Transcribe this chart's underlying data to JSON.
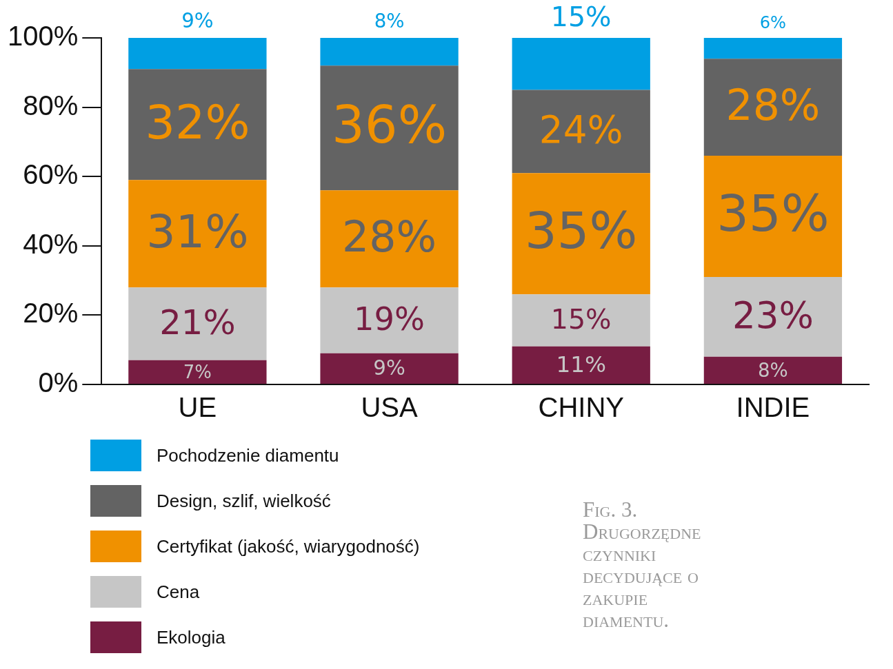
{
  "chart_data": {
    "type": "bar",
    "stacked": true,
    "categories": [
      "UE",
      "USA",
      "CHINY",
      "INDIE"
    ],
    "series": [
      {
        "name": "Ekologia",
        "color": "#771d42",
        "values": [
          7,
          9,
          11,
          8
        ],
        "value_labels": [
          "7%",
          "9%",
          "11%",
          "8%"
        ]
      },
      {
        "name": "Cena",
        "color": "#c6c6c6",
        "values": [
          21,
          19,
          15,
          23
        ],
        "value_labels": [
          "21%",
          "19%",
          "15%",
          "23%"
        ]
      },
      {
        "name": "Certyfikat (jakość, wiarygodność)",
        "color": "#f09100",
        "values": [
          31,
          28,
          35,
          35
        ],
        "value_labels": [
          "31%",
          "28%",
          "35%",
          "35%"
        ]
      },
      {
        "name": "Design, szlif, wielkość",
        "color": "#636363",
        "values": [
          32,
          36,
          24,
          28
        ],
        "value_labels": [
          "32%",
          "36%",
          "24%",
          "28%"
        ]
      },
      {
        "name": "Pochodzenie diamentu",
        "color": "#009fe3",
        "values": [
          9,
          8,
          15,
          6
        ],
        "value_labels": [
          "9%",
          "8%",
          "15%",
          "6%"
        ]
      }
    ],
    "ylim": [
      0,
      100
    ],
    "yticks": [
      {
        "value": 0,
        "label": "0%"
      },
      {
        "value": 20,
        "label": "20%"
      },
      {
        "value": 40,
        "label": "40%"
      },
      {
        "value": 60,
        "label": "60%"
      },
      {
        "value": 80,
        "label": "80%"
      },
      {
        "value": 100,
        "label": "100%"
      }
    ],
    "grid": false,
    "legend": "bottom left",
    "annotations": [
      "Fig. 3. Drugorzędne czynniki decydujące o zakupie diamentu."
    ]
  }
}
